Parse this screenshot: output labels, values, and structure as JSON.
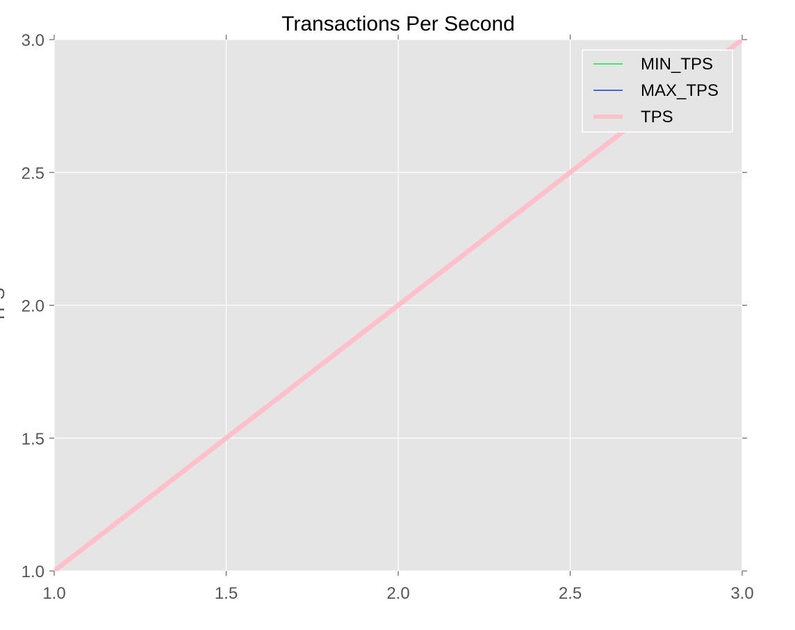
{
  "chart_data": {
    "type": "line",
    "title": "Transactions Per Second",
    "xlabel": "",
    "ylabel": "TPS",
    "xlim": [
      1.0,
      3.0
    ],
    "ylim": [
      1.0,
      3.0
    ],
    "xticks": [
      1.0,
      1.5,
      2.0,
      2.5,
      3.0
    ],
    "yticks": [
      1.0,
      1.5,
      2.0,
      2.5,
      3.0
    ],
    "xtick_labels": [
      "1.0",
      "1.5",
      "2.0",
      "2.5",
      "3.0"
    ],
    "ytick_labels": [
      "1.0",
      "1.5",
      "2.0",
      "2.5",
      "3.0"
    ],
    "grid": true,
    "legend_position": "top-right",
    "background_color": "#e5e5e5",
    "series": [
      {
        "name": "MIN_TPS",
        "color": "#33ee66",
        "line_style": "thin",
        "x": [],
        "y": []
      },
      {
        "name": "MAX_TPS",
        "color": "#4466dd",
        "line_style": "thin",
        "x": [],
        "y": []
      },
      {
        "name": "TPS",
        "color": "#ffc0cb",
        "line_style": "thick",
        "x": [
          1.0,
          2.0,
          3.0
        ],
        "y": [
          1.0,
          2.0,
          3.0
        ]
      }
    ]
  }
}
